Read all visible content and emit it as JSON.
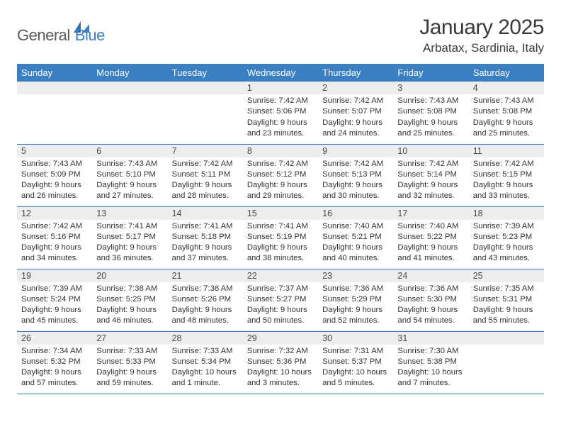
{
  "brand": {
    "part1": "General",
    "part2": "Blue"
  },
  "title": "January 2025",
  "location": "Arbatax, Sardinia, Italy",
  "colors": {
    "accent": "#3a7fc2",
    "daynum_bg": "#ededed",
    "text_dark": "#3a3a3a",
    "text_body": "#333333",
    "text_brand_gray": "#5a5a5a"
  },
  "weekdays": [
    "Sunday",
    "Monday",
    "Tuesday",
    "Wednesday",
    "Thursday",
    "Friday",
    "Saturday"
  ],
  "weeks": [
    [
      null,
      null,
      null,
      {
        "n": "1",
        "sunrise": "7:42 AM",
        "sunset": "5:06 PM",
        "daylight": "9 hours and 23 minutes."
      },
      {
        "n": "2",
        "sunrise": "7:42 AM",
        "sunset": "5:07 PM",
        "daylight": "9 hours and 24 minutes."
      },
      {
        "n": "3",
        "sunrise": "7:43 AM",
        "sunset": "5:08 PM",
        "daylight": "9 hours and 25 minutes."
      },
      {
        "n": "4",
        "sunrise": "7:43 AM",
        "sunset": "5:08 PM",
        "daylight": "9 hours and 25 minutes."
      }
    ],
    [
      {
        "n": "5",
        "sunrise": "7:43 AM",
        "sunset": "5:09 PM",
        "daylight": "9 hours and 26 minutes."
      },
      {
        "n": "6",
        "sunrise": "7:43 AM",
        "sunset": "5:10 PM",
        "daylight": "9 hours and 27 minutes."
      },
      {
        "n": "7",
        "sunrise": "7:42 AM",
        "sunset": "5:11 PM",
        "daylight": "9 hours and 28 minutes."
      },
      {
        "n": "8",
        "sunrise": "7:42 AM",
        "sunset": "5:12 PM",
        "daylight": "9 hours and 29 minutes."
      },
      {
        "n": "9",
        "sunrise": "7:42 AM",
        "sunset": "5:13 PM",
        "daylight": "9 hours and 30 minutes."
      },
      {
        "n": "10",
        "sunrise": "7:42 AM",
        "sunset": "5:14 PM",
        "daylight": "9 hours and 32 minutes."
      },
      {
        "n": "11",
        "sunrise": "7:42 AM",
        "sunset": "5:15 PM",
        "daylight": "9 hours and 33 minutes."
      }
    ],
    [
      {
        "n": "12",
        "sunrise": "7:42 AM",
        "sunset": "5:16 PM",
        "daylight": "9 hours and 34 minutes."
      },
      {
        "n": "13",
        "sunrise": "7:41 AM",
        "sunset": "5:17 PM",
        "daylight": "9 hours and 36 minutes."
      },
      {
        "n": "14",
        "sunrise": "7:41 AM",
        "sunset": "5:18 PM",
        "daylight": "9 hours and 37 minutes."
      },
      {
        "n": "15",
        "sunrise": "7:41 AM",
        "sunset": "5:19 PM",
        "daylight": "9 hours and 38 minutes."
      },
      {
        "n": "16",
        "sunrise": "7:40 AM",
        "sunset": "5:21 PM",
        "daylight": "9 hours and 40 minutes."
      },
      {
        "n": "17",
        "sunrise": "7:40 AM",
        "sunset": "5:22 PM",
        "daylight": "9 hours and 41 minutes."
      },
      {
        "n": "18",
        "sunrise": "7:39 AM",
        "sunset": "5:23 PM",
        "daylight": "9 hours and 43 minutes."
      }
    ],
    [
      {
        "n": "19",
        "sunrise": "7:39 AM",
        "sunset": "5:24 PM",
        "daylight": "9 hours and 45 minutes."
      },
      {
        "n": "20",
        "sunrise": "7:38 AM",
        "sunset": "5:25 PM",
        "daylight": "9 hours and 46 minutes."
      },
      {
        "n": "21",
        "sunrise": "7:38 AM",
        "sunset": "5:26 PM",
        "daylight": "9 hours and 48 minutes."
      },
      {
        "n": "22",
        "sunrise": "7:37 AM",
        "sunset": "5:27 PM",
        "daylight": "9 hours and 50 minutes."
      },
      {
        "n": "23",
        "sunrise": "7:36 AM",
        "sunset": "5:29 PM",
        "daylight": "9 hours and 52 minutes."
      },
      {
        "n": "24",
        "sunrise": "7:36 AM",
        "sunset": "5:30 PM",
        "daylight": "9 hours and 54 minutes."
      },
      {
        "n": "25",
        "sunrise": "7:35 AM",
        "sunset": "5:31 PM",
        "daylight": "9 hours and 55 minutes."
      }
    ],
    [
      {
        "n": "26",
        "sunrise": "7:34 AM",
        "sunset": "5:32 PM",
        "daylight": "9 hours and 57 minutes."
      },
      {
        "n": "27",
        "sunrise": "7:33 AM",
        "sunset": "5:33 PM",
        "daylight": "9 hours and 59 minutes."
      },
      {
        "n": "28",
        "sunrise": "7:33 AM",
        "sunset": "5:34 PM",
        "daylight": "10 hours and 1 minute."
      },
      {
        "n": "29",
        "sunrise": "7:32 AM",
        "sunset": "5:36 PM",
        "daylight": "10 hours and 3 minutes."
      },
      {
        "n": "30",
        "sunrise": "7:31 AM",
        "sunset": "5:37 PM",
        "daylight": "10 hours and 5 minutes."
      },
      {
        "n": "31",
        "sunrise": "7:30 AM",
        "sunset": "5:38 PM",
        "daylight": "10 hours and 7 minutes."
      },
      null
    ]
  ],
  "labels": {
    "sunrise": "Sunrise:",
    "sunset": "Sunset:",
    "daylight": "Daylight:"
  }
}
